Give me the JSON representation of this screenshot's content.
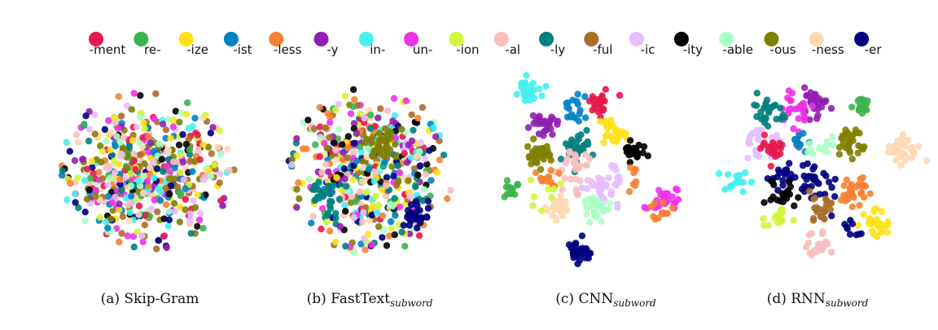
{
  "legend": [
    {
      "label": "-ment",
      "color": "#e6194b"
    },
    {
      "label": "re-",
      "color": "#3cb44b"
    },
    {
      "label": "-ize",
      "color": "#ffe119"
    },
    {
      "label": "-ist",
      "color": "#0082c8"
    },
    {
      "label": "-less",
      "color": "#f58231"
    },
    {
      "label": "-y",
      "color": "#911eb4"
    },
    {
      "label": "in-",
      "color": "#46f0f0"
    },
    {
      "label": "un-",
      "color": "#f032e6"
    },
    {
      "label": "-ion",
      "color": "#d2f53c"
    },
    {
      "label": "-al",
      "color": "#fabebe"
    },
    {
      "label": "-ly",
      "color": "#008080"
    },
    {
      "label": "-ful",
      "color": "#aa6e28"
    },
    {
      "label": "-ic",
      "color": "#e6beff"
    },
    {
      "label": "-ity",
      "color": "#000000"
    },
    {
      "label": "-able",
      "color": "#aaffc3"
    },
    {
      "label": "-ous",
      "color": "#808000"
    },
    {
      "label": "-ness",
      "color": "#ffd8b1"
    },
    {
      "label": "-er",
      "color": "#000080"
    }
  ],
  "captions": [
    {
      "main": "(a) Skip-Gram",
      "sub": ""
    },
    {
      "main": "(b) FastText",
      "sub": "subword"
    },
    {
      "main": "(c) CNN",
      "sub": "subword"
    },
    {
      "main": "(d) RNN",
      "sub": "subword"
    }
  ],
  "chart_data": [
    {
      "type": "scatter",
      "title": "(a) Skip-Gram",
      "layout": "mixed",
      "axes": "none",
      "grid": false
    },
    {
      "type": "scatter",
      "title": "(b) FastText subword",
      "layout": "mixed",
      "axes": "none",
      "grid": false
    },
    {
      "type": "scatter",
      "title": "(c) CNN subword",
      "layout": "clustered",
      "axes": "none",
      "grid": false
    },
    {
      "type": "scatter",
      "title": "(d) RNN subword",
      "layout": "clustered",
      "axes": "none",
      "grid": false
    }
  ]
}
